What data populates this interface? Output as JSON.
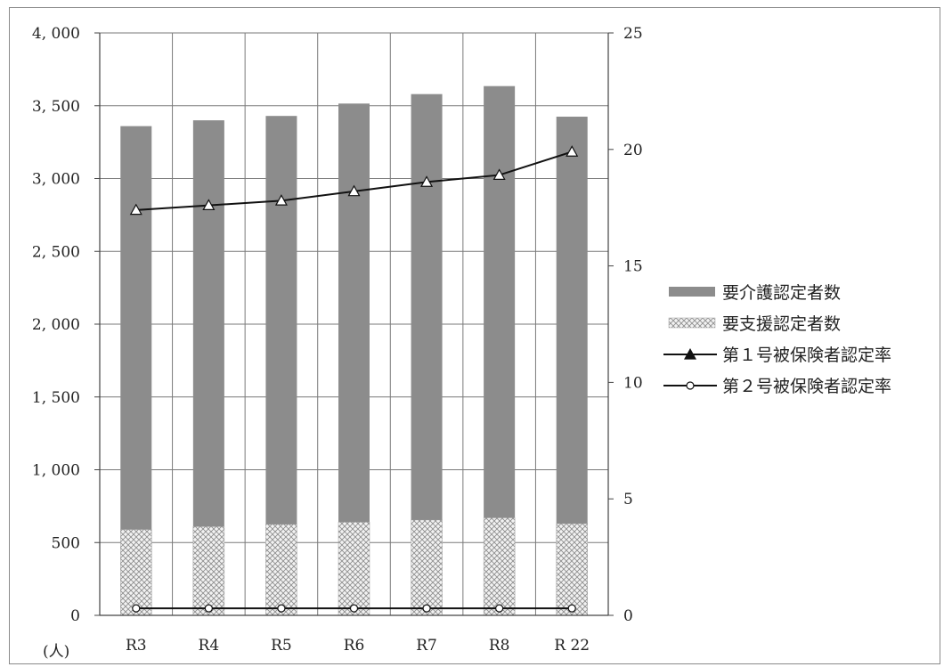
{
  "chart_data": {
    "type": "bar",
    "categories": [
      "R3",
      "R4",
      "R5",
      "R6",
      "R7",
      "R8",
      "R 22"
    ],
    "stacked": true,
    "unit_label": "(人)",
    "series": [
      {
        "name": "要支援認定者数",
        "kind": "bar",
        "axis": "left",
        "pattern": "crosshatch",
        "values": [
          590,
          610,
          625,
          640,
          655,
          670,
          630
        ]
      },
      {
        "name": "要介護認定者数",
        "kind": "bar",
        "axis": "left",
        "color": "#8c8c8c",
        "values": [
          2770,
          2790,
          2805,
          2875,
          2925,
          2965,
          2795
        ]
      },
      {
        "name": "第１号被保険者認定率",
        "kind": "line",
        "axis": "right",
        "marker": "triangle",
        "values": [
          17.4,
          17.6,
          17.8,
          18.2,
          18.6,
          18.9,
          19.9
        ]
      },
      {
        "name": "第２号被保険者認定率",
        "kind": "line",
        "axis": "right",
        "marker": "circle",
        "values": [
          0.3,
          0.3,
          0.3,
          0.3,
          0.3,
          0.3,
          0.3
        ]
      }
    ],
    "y_left": {
      "min": 0,
      "max": 4000,
      "step": 500,
      "tick_labels": [
        "0",
        "500",
        "1, 000",
        "1, 500",
        "2, 000",
        "2, 500",
        "3, 000",
        "3, 500",
        "4, 000"
      ]
    },
    "y_right": {
      "min": 0,
      "max": 25,
      "step": 5,
      "tick_labels": [
        "0",
        "5",
        "10",
        "15",
        "20",
        "25"
      ]
    },
    "legend_order": [
      "要介護認定者数",
      "要支援認定者数",
      "第１号被保険者認定率",
      "第２号被保険者認定率"
    ],
    "legend_position": "right",
    "grid": true
  }
}
